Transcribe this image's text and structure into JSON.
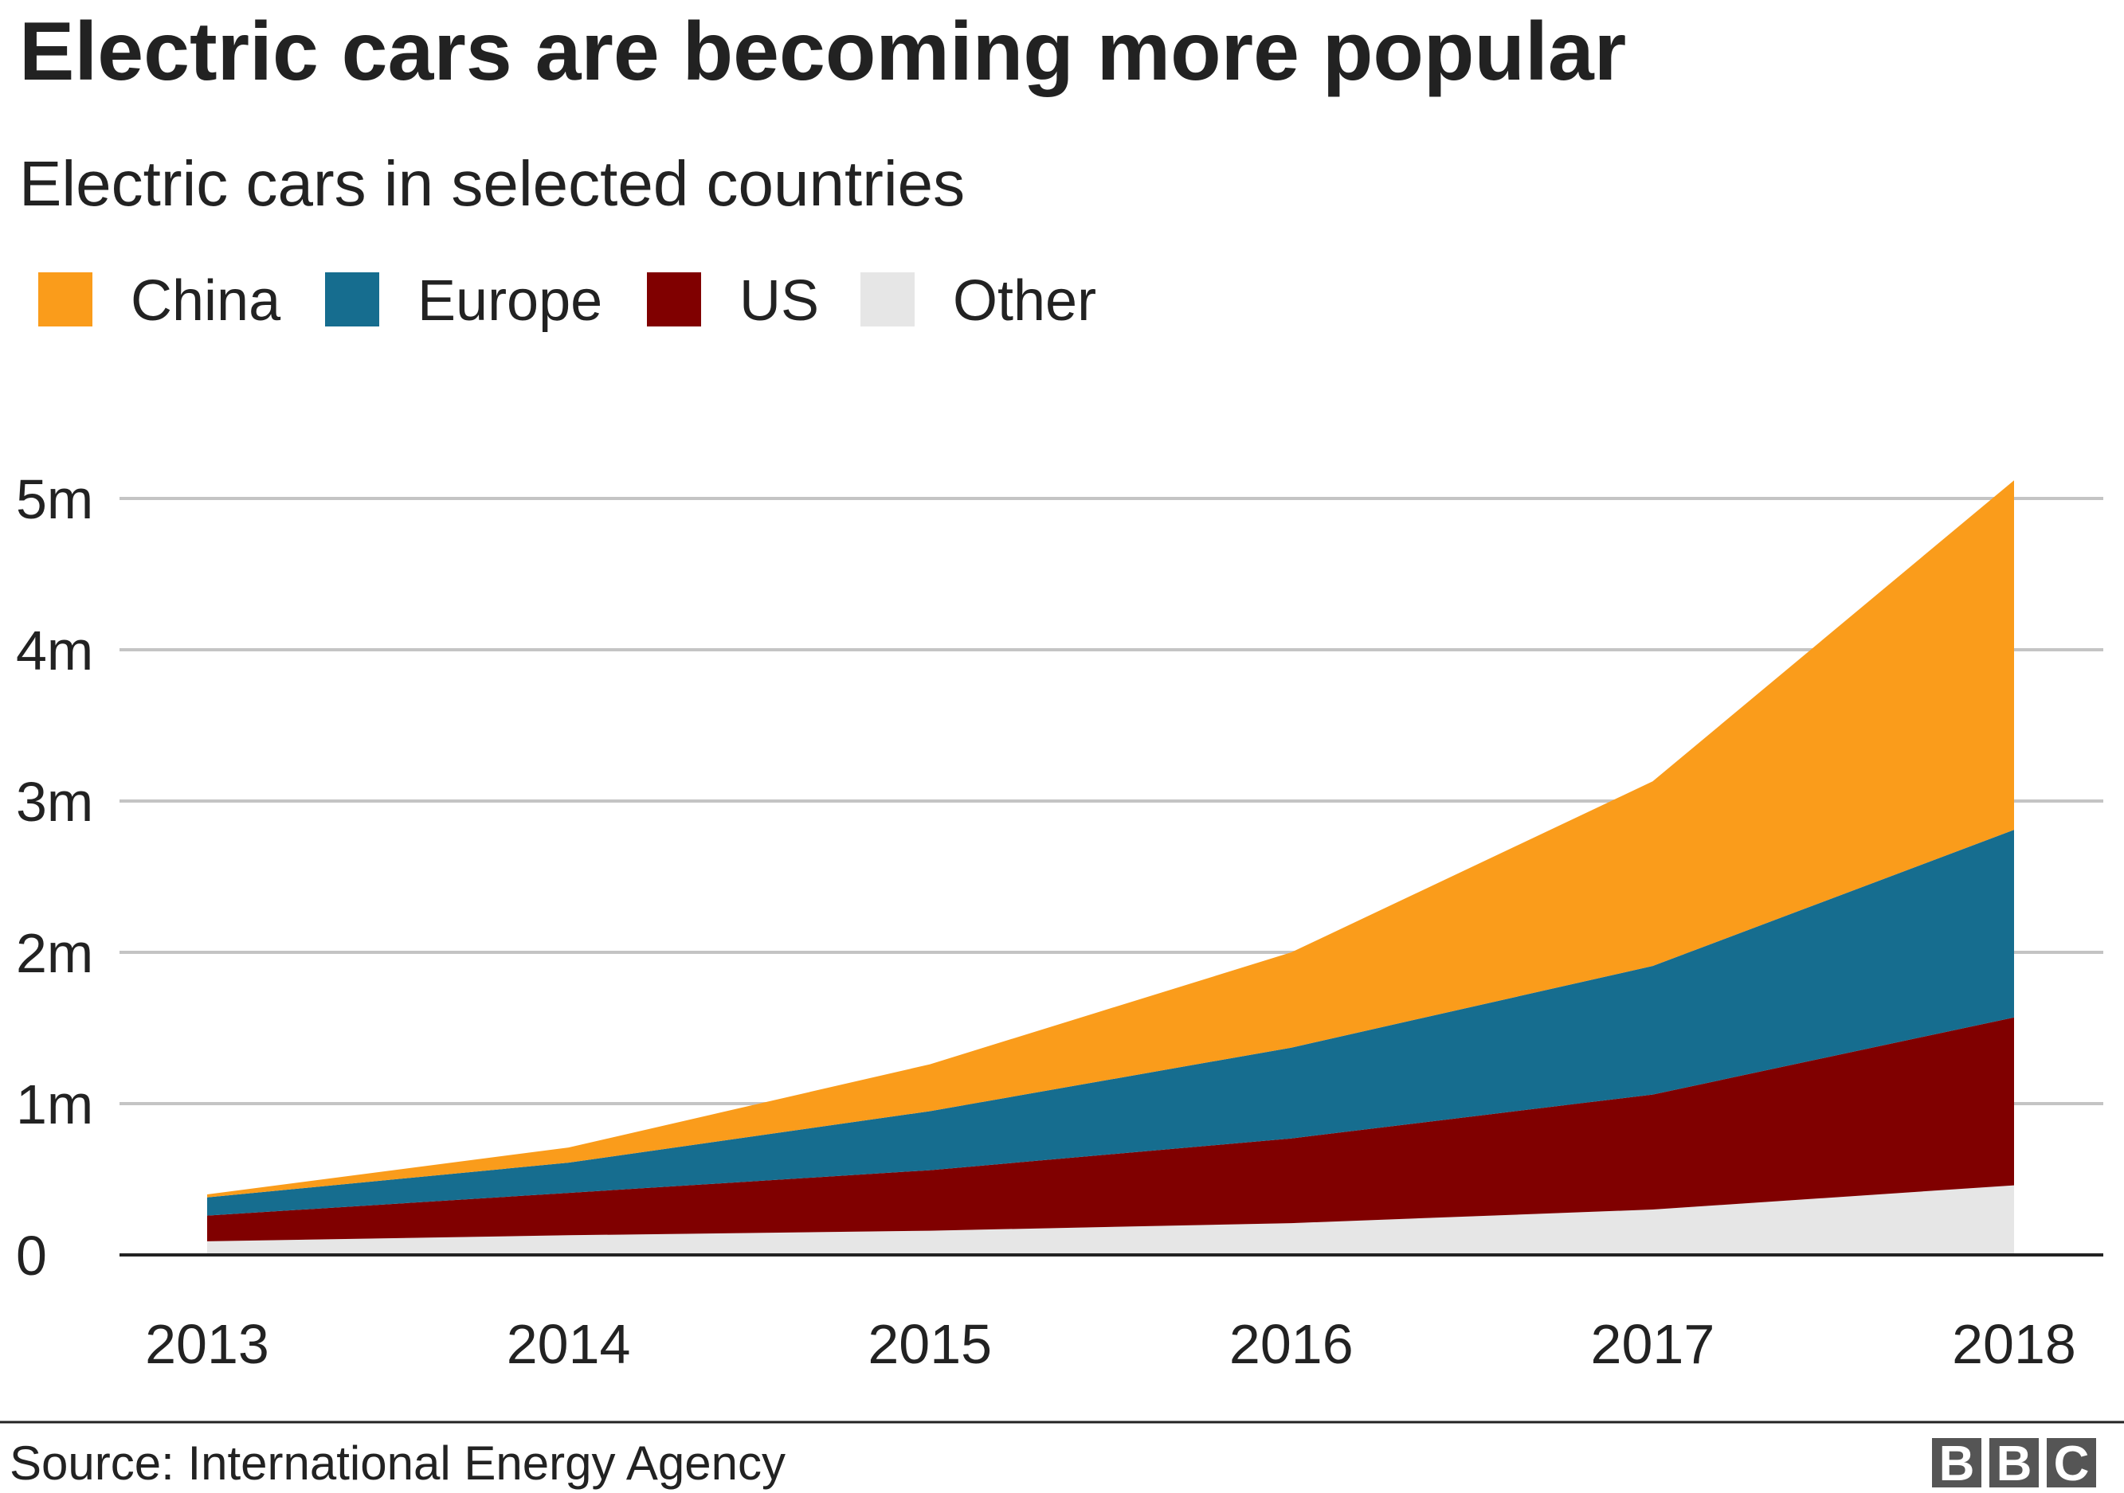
{
  "chart_data": {
    "type": "area",
    "stacked": true,
    "title": "Electric cars are becoming more popular",
    "subtitle": "Electric cars in selected countries",
    "xlabel": "",
    "ylabel": "",
    "categories": [
      "2013",
      "2014",
      "2015",
      "2016",
      "2017",
      "2018"
    ],
    "ylim": [
      0,
      5
    ],
    "yticks": [
      0,
      1,
      2,
      3,
      4,
      5
    ],
    "ytick_labels": [
      "0",
      "1m",
      "2m",
      "3m",
      "4m",
      "5m"
    ],
    "unit": "millions",
    "grid": true,
    "legend_position": "top-left",
    "series": [
      {
        "name": "Other",
        "color": "#e6e6e6",
        "values": [
          0.09,
          0.13,
          0.16,
          0.21,
          0.3,
          0.46
        ]
      },
      {
        "name": "US",
        "color": "#800000",
        "values": [
          0.17,
          0.28,
          0.4,
          0.56,
          0.76,
          1.11
        ]
      },
      {
        "name": "Europe",
        "color": "#166d8f",
        "values": [
          0.12,
          0.2,
          0.39,
          0.6,
          0.85,
          1.24
        ]
      },
      {
        "name": "China",
        "color": "#fa9c1b",
        "values": [
          0.02,
          0.1,
          0.31,
          0.63,
          1.22,
          2.31
        ]
      }
    ],
    "legend_order": [
      "China",
      "Europe",
      "US",
      "Other"
    ]
  },
  "footer": {
    "source": "Source: International Energy Agency",
    "logo": "BBC"
  }
}
